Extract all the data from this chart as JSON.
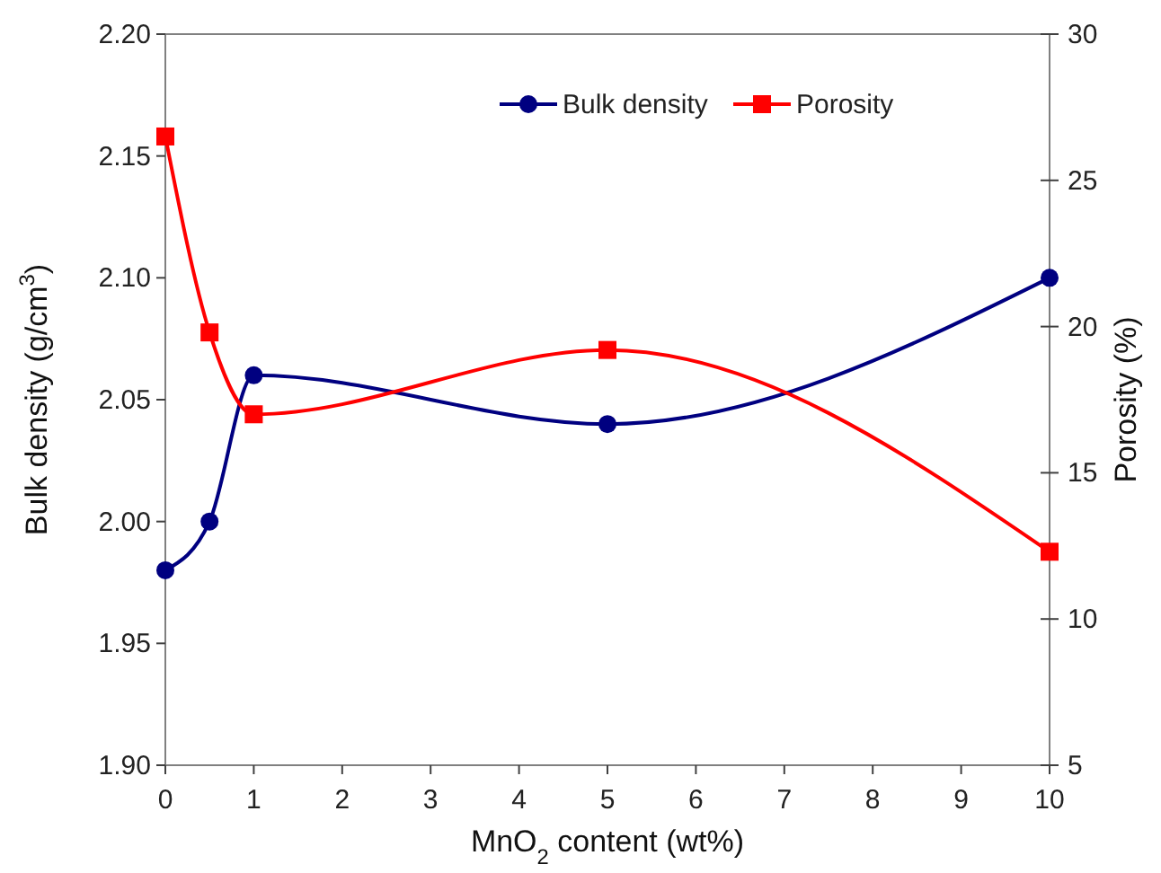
{
  "chart_data": {
    "type": "line",
    "xlabel": "MnO$_{2}$ content (wt%)",
    "ylabel": "Bulk density (g/cm$^{3}$)",
    "y2label": "Porosity (%)",
    "x": [
      0,
      0.5,
      1,
      5,
      10
    ],
    "xlim": [
      0,
      10
    ],
    "xticks": [
      0,
      1,
      2,
      3,
      4,
      5,
      6,
      7,
      8,
      9,
      10
    ],
    "ylim": [
      1.9,
      2.2
    ],
    "yticks": [
      {
        "value": 1.9,
        "label": "1.90"
      },
      {
        "value": 1.95,
        "label": "1.95"
      },
      {
        "value": 2.0,
        "label": "2.00"
      },
      {
        "value": 2.05,
        "label": "2.05"
      },
      {
        "value": 2.1,
        "label": "2.10"
      },
      {
        "value": 2.15,
        "label": "2.15"
      },
      {
        "value": 2.2,
        "label": "2.20"
      }
    ],
    "y2lim": [
      5,
      30
    ],
    "y2ticks": [
      5,
      10,
      15,
      20,
      25,
      30
    ],
    "series": [
      {
        "name": "Bulk density",
        "color": "#000080",
        "values": [
          1.98,
          2.0,
          2.06,
          2.04,
          2.1
        ],
        "marker": "circle"
      },
      {
        "name": "Porosity",
        "color": "#ff0000",
        "values": [
          26.5,
          19.8,
          17.0,
          19.2,
          12.3
        ],
        "axis": "y2",
        "marker": "square"
      }
    ],
    "legend": "top right",
    "grid": false,
    "line_style": "solid"
  }
}
